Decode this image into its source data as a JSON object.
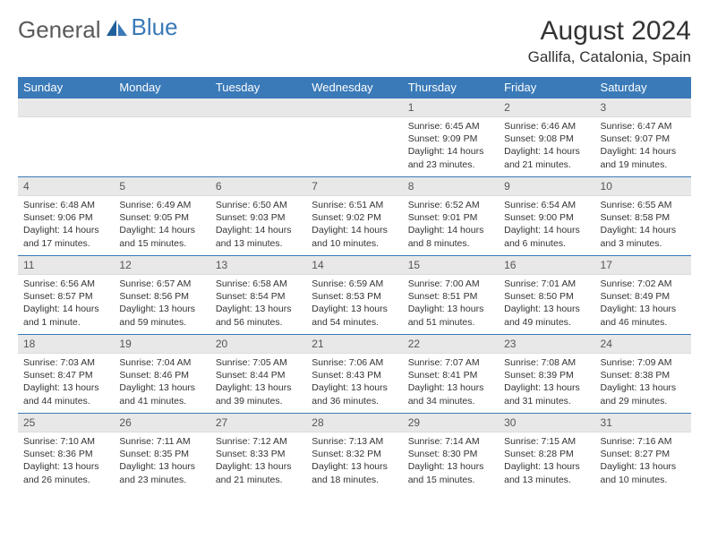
{
  "brand": {
    "part1": "General",
    "part2": "Blue"
  },
  "title": {
    "month_year": "August 2024",
    "location": "Gallifa, Catalonia, Spain"
  },
  "colors": {
    "header_bg": "#3a7ab8",
    "header_text": "#ffffff",
    "daynum_bg": "#e8e8e8",
    "cell_border": "#3a7ab8",
    "body_text": "#333333",
    "logo_gray": "#5a5a5a",
    "logo_blue": "#3a7ab8"
  },
  "typography": {
    "title_fontsize": 30,
    "location_fontsize": 17,
    "dow_fontsize": 13,
    "daynum_fontsize": 12,
    "body_fontsize": 10.5
  },
  "layout": {
    "columns": 7,
    "rows": 5,
    "first_day_column": 4
  },
  "dow": [
    "Sunday",
    "Monday",
    "Tuesday",
    "Wednesday",
    "Thursday",
    "Friday",
    "Saturday"
  ],
  "days": [
    {
      "n": 1,
      "sunrise": "6:45 AM",
      "sunset": "9:09 PM",
      "daylight": "14 hours and 23 minutes."
    },
    {
      "n": 2,
      "sunrise": "6:46 AM",
      "sunset": "9:08 PM",
      "daylight": "14 hours and 21 minutes."
    },
    {
      "n": 3,
      "sunrise": "6:47 AM",
      "sunset": "9:07 PM",
      "daylight": "14 hours and 19 minutes."
    },
    {
      "n": 4,
      "sunrise": "6:48 AM",
      "sunset": "9:06 PM",
      "daylight": "14 hours and 17 minutes."
    },
    {
      "n": 5,
      "sunrise": "6:49 AM",
      "sunset": "9:05 PM",
      "daylight": "14 hours and 15 minutes."
    },
    {
      "n": 6,
      "sunrise": "6:50 AM",
      "sunset": "9:03 PM",
      "daylight": "14 hours and 13 minutes."
    },
    {
      "n": 7,
      "sunrise": "6:51 AM",
      "sunset": "9:02 PM",
      "daylight": "14 hours and 10 minutes."
    },
    {
      "n": 8,
      "sunrise": "6:52 AM",
      "sunset": "9:01 PM",
      "daylight": "14 hours and 8 minutes."
    },
    {
      "n": 9,
      "sunrise": "6:54 AM",
      "sunset": "9:00 PM",
      "daylight": "14 hours and 6 minutes."
    },
    {
      "n": 10,
      "sunrise": "6:55 AM",
      "sunset": "8:58 PM",
      "daylight": "14 hours and 3 minutes."
    },
    {
      "n": 11,
      "sunrise": "6:56 AM",
      "sunset": "8:57 PM",
      "daylight": "14 hours and 1 minute."
    },
    {
      "n": 12,
      "sunrise": "6:57 AM",
      "sunset": "8:56 PM",
      "daylight": "13 hours and 59 minutes."
    },
    {
      "n": 13,
      "sunrise": "6:58 AM",
      "sunset": "8:54 PM",
      "daylight": "13 hours and 56 minutes."
    },
    {
      "n": 14,
      "sunrise": "6:59 AM",
      "sunset": "8:53 PM",
      "daylight": "13 hours and 54 minutes."
    },
    {
      "n": 15,
      "sunrise": "7:00 AM",
      "sunset": "8:51 PM",
      "daylight": "13 hours and 51 minutes."
    },
    {
      "n": 16,
      "sunrise": "7:01 AM",
      "sunset": "8:50 PM",
      "daylight": "13 hours and 49 minutes."
    },
    {
      "n": 17,
      "sunrise": "7:02 AM",
      "sunset": "8:49 PM",
      "daylight": "13 hours and 46 minutes."
    },
    {
      "n": 18,
      "sunrise": "7:03 AM",
      "sunset": "8:47 PM",
      "daylight": "13 hours and 44 minutes."
    },
    {
      "n": 19,
      "sunrise": "7:04 AM",
      "sunset": "8:46 PM",
      "daylight": "13 hours and 41 minutes."
    },
    {
      "n": 20,
      "sunrise": "7:05 AM",
      "sunset": "8:44 PM",
      "daylight": "13 hours and 39 minutes."
    },
    {
      "n": 21,
      "sunrise": "7:06 AM",
      "sunset": "8:43 PM",
      "daylight": "13 hours and 36 minutes."
    },
    {
      "n": 22,
      "sunrise": "7:07 AM",
      "sunset": "8:41 PM",
      "daylight": "13 hours and 34 minutes."
    },
    {
      "n": 23,
      "sunrise": "7:08 AM",
      "sunset": "8:39 PM",
      "daylight": "13 hours and 31 minutes."
    },
    {
      "n": 24,
      "sunrise": "7:09 AM",
      "sunset": "8:38 PM",
      "daylight": "13 hours and 29 minutes."
    },
    {
      "n": 25,
      "sunrise": "7:10 AM",
      "sunset": "8:36 PM",
      "daylight": "13 hours and 26 minutes."
    },
    {
      "n": 26,
      "sunrise": "7:11 AM",
      "sunset": "8:35 PM",
      "daylight": "13 hours and 23 minutes."
    },
    {
      "n": 27,
      "sunrise": "7:12 AM",
      "sunset": "8:33 PM",
      "daylight": "13 hours and 21 minutes."
    },
    {
      "n": 28,
      "sunrise": "7:13 AM",
      "sunset": "8:32 PM",
      "daylight": "13 hours and 18 minutes."
    },
    {
      "n": 29,
      "sunrise": "7:14 AM",
      "sunset": "8:30 PM",
      "daylight": "13 hours and 15 minutes."
    },
    {
      "n": 30,
      "sunrise": "7:15 AM",
      "sunset": "8:28 PM",
      "daylight": "13 hours and 13 minutes."
    },
    {
      "n": 31,
      "sunrise": "7:16 AM",
      "sunset": "8:27 PM",
      "daylight": "13 hours and 10 minutes."
    }
  ],
  "labels": {
    "sunrise": "Sunrise: ",
    "sunset": "Sunset: ",
    "daylight": "Daylight: "
  }
}
